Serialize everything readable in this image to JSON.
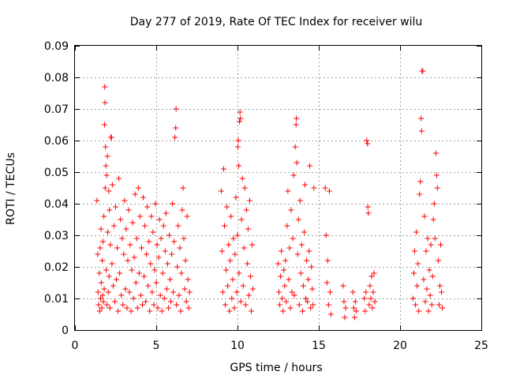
{
  "chart_data": {
    "type": "scatter",
    "title": "Day 277 of 2019, Rate Of TEC Index for receiver wilu",
    "xlabel": "GPS time / hours",
    "ylabel": "ROTI / TECUs",
    "xlim": [
      0,
      25
    ],
    "ylim": [
      0,
      0.09
    ],
    "xticks": [
      0,
      5,
      10,
      15,
      20,
      25
    ],
    "xtick_labels": [
      "0",
      "5",
      "10",
      "15",
      "20",
      "25"
    ],
    "yticks": [
      0,
      0.01,
      0.02,
      0.03,
      0.04,
      0.05,
      0.06,
      0.07,
      0.08,
      0.09
    ],
    "ytick_labels": [
      "0",
      "0.01",
      "0.02",
      "0.03",
      "0.04",
      "0.05",
      "0.06",
      "0.07",
      "0.08",
      "0.09"
    ],
    "grid": true,
    "marker": "plus",
    "color": "#ff0000",
    "series": [
      {
        "name": "ROTI",
        "points": [
          [
            1.35,
            0.041
          ],
          [
            1.4,
            0.024
          ],
          [
            1.42,
            0.012
          ],
          [
            1.45,
            0.008
          ],
          [
            1.5,
            0.018
          ],
          [
            1.52,
            0.006
          ],
          [
            1.55,
            0.026
          ],
          [
            1.58,
            0.01
          ],
          [
            1.6,
            0.032
          ],
          [
            1.62,
            0.015
          ],
          [
            1.65,
            0.007
          ],
          [
            1.68,
            0.022
          ],
          [
            1.7,
            0.011
          ],
          [
            1.72,
            0.028
          ],
          [
            1.75,
            0.009
          ],
          [
            1.78,
            0.036
          ],
          [
            1.8,
            0.013
          ],
          [
            1.82,
            0.065
          ],
          [
            1.83,
            0.077
          ],
          [
            1.85,
            0.072
          ],
          [
            1.86,
            0.045
          ],
          [
            1.88,
            0.058
          ],
          [
            1.9,
            0.052
          ],
          [
            1.92,
            0.019
          ],
          [
            1.95,
            0.049
          ],
          [
            1.97,
            0.008
          ],
          [
            2.0,
            0.055
          ],
          [
            2.02,
            0.031
          ],
          [
            2.05,
            0.012
          ],
          [
            2.08,
            0.044
          ],
          [
            2.1,
            0.017
          ],
          [
            2.12,
            0.038
          ],
          [
            2.15,
            0.007
          ],
          [
            2.18,
            0.027
          ],
          [
            2.2,
            0.061
          ],
          [
            2.25,
            0.061
          ],
          [
            2.28,
            0.021
          ],
          [
            2.3,
            0.046
          ],
          [
            2.35,
            0.014
          ],
          [
            2.4,
            0.033
          ],
          [
            2.45,
            0.009
          ],
          [
            2.5,
            0.039
          ],
          [
            2.55,
            0.016
          ],
          [
            2.6,
            0.026
          ],
          [
            2.65,
            0.006
          ],
          [
            2.7,
            0.048
          ],
          [
            2.75,
            0.018
          ],
          [
            2.8,
            0.035
          ],
          [
            2.85,
            0.011
          ],
          [
            2.9,
            0.029
          ],
          [
            2.95,
            0.008
          ],
          [
            3.0,
            0.024
          ],
          [
            3.05,
            0.041
          ],
          [
            3.1,
            0.013
          ],
          [
            3.15,
            0.032
          ],
          [
            3.2,
            0.007
          ],
          [
            3.25,
            0.022
          ],
          [
            3.3,
            0.038
          ],
          [
            3.35,
            0.012
          ],
          [
            3.4,
            0.027
          ],
          [
            3.45,
            0.006
          ],
          [
            3.5,
            0.019
          ],
          [
            3.55,
            0.034
          ],
          [
            3.6,
            0.01
          ],
          [
            3.65,
            0.023
          ],
          [
            3.7,
            0.043
          ],
          [
            3.75,
            0.015
          ],
          [
            3.8,
            0.029
          ],
          [
            3.85,
            0.007
          ],
          [
            3.9,
            0.045
          ],
          [
            3.95,
            0.018
          ],
          [
            4.0,
            0.036
          ],
          [
            4.05,
            0.011
          ],
          [
            4.1,
            0.026
          ],
          [
            4.15,
            0.008
          ],
          [
            4.2,
            0.042
          ],
          [
            4.25,
            0.017
          ],
          [
            4.3,
            0.033
          ],
          [
            4.35,
            0.009
          ],
          [
            4.4,
            0.024
          ],
          [
            4.45,
            0.039
          ],
          [
            4.5,
            0.014
          ],
          [
            4.55,
            0.028
          ],
          [
            4.6,
            0.006
          ],
          [
            4.65,
            0.021
          ],
          [
            4.7,
            0.036
          ],
          [
            4.75,
            0.012
          ],
          [
            4.8,
            0.031
          ],
          [
            4.85,
            0.008
          ],
          [
            4.9,
            0.019
          ],
          [
            4.95,
            0.04
          ],
          [
            5.0,
            0.015
          ],
          [
            5.05,
            0.027
          ],
          [
            5.1,
            0.007
          ],
          [
            5.15,
            0.023
          ],
          [
            5.2,
            0.035
          ],
          [
            5.25,
            0.011
          ],
          [
            5.3,
            0.029
          ],
          [
            5.35,
            0.006
          ],
          [
            5.4,
            0.018
          ],
          [
            5.45,
            0.033
          ],
          [
            5.5,
            0.01
          ],
          [
            5.55,
            0.025
          ],
          [
            5.6,
            0.037
          ],
          [
            5.65,
            0.013
          ],
          [
            5.7,
            0.021
          ],
          [
            5.75,
            0.007
          ],
          [
            5.8,
            0.03
          ],
          [
            5.85,
            0.016
          ],
          [
            5.9,
            0.009
          ],
          [
            5.95,
            0.024
          ],
          [
            6.0,
            0.04
          ],
          [
            6.05,
            0.012
          ],
          [
            6.1,
            0.028
          ],
          [
            6.15,
            0.061
          ],
          [
            6.2,
            0.064
          ],
          [
            6.22,
            0.07
          ],
          [
            6.25,
            0.008
          ],
          [
            6.3,
            0.02
          ],
          [
            6.35,
            0.033
          ],
          [
            6.4,
            0.011
          ],
          [
            6.45,
            0.026
          ],
          [
            6.5,
            0.006
          ],
          [
            6.55,
            0.018
          ],
          [
            6.6,
            0.038
          ],
          [
            6.65,
            0.045
          ],
          [
            6.7,
            0.029
          ],
          [
            6.75,
            0.013
          ],
          [
            6.8,
            0.022
          ],
          [
            6.85,
            0.009
          ],
          [
            6.9,
            0.036
          ],
          [
            6.95,
            0.016
          ],
          [
            7.0,
            0.007
          ],
          [
            7.05,
            0.012
          ],
          [
            9.0,
            0.044
          ],
          [
            9.05,
            0.025
          ],
          [
            9.1,
            0.012
          ],
          [
            9.15,
            0.051
          ],
          [
            9.2,
            0.033
          ],
          [
            9.25,
            0.008
          ],
          [
            9.3,
            0.019
          ],
          [
            9.35,
            0.039
          ],
          [
            9.4,
            0.014
          ],
          [
            9.45,
            0.027
          ],
          [
            9.5,
            0.006
          ],
          [
            9.55,
            0.022
          ],
          [
            9.6,
            0.036
          ],
          [
            9.65,
            0.01
          ],
          [
            9.7,
            0.016
          ],
          [
            9.75,
            0.029
          ],
          [
            9.8,
            0.007
          ],
          [
            9.85,
            0.024
          ],
          [
            9.9,
            0.042
          ],
          [
            9.95,
            0.012
          ],
          [
            10.0,
            0.03
          ],
          [
            10.02,
            0.058
          ],
          [
            10.05,
            0.06
          ],
          [
            10.08,
            0.052
          ],
          [
            10.1,
            0.018
          ],
          [
            10.12,
            0.066
          ],
          [
            10.15,
            0.069
          ],
          [
            10.18,
            0.067
          ],
          [
            10.2,
            0.009
          ],
          [
            10.25,
            0.035
          ],
          [
            10.3,
            0.048
          ],
          [
            10.35,
            0.014
          ],
          [
            10.4,
            0.026
          ],
          [
            10.45,
            0.045
          ],
          [
            10.5,
            0.008
          ],
          [
            10.55,
            0.038
          ],
          [
            10.6,
            0.021
          ],
          [
            10.65,
            0.032
          ],
          [
            10.7,
            0.011
          ],
          [
            10.75,
            0.041
          ],
          [
            10.8,
            0.017
          ],
          [
            10.85,
            0.006
          ],
          [
            10.9,
            0.027
          ],
          [
            10.95,
            0.013
          ],
          [
            12.5,
            0.021
          ],
          [
            12.55,
            0.012
          ],
          [
            12.6,
            0.008
          ],
          [
            12.65,
            0.017
          ],
          [
            12.7,
            0.025
          ],
          [
            12.75,
            0.01
          ],
          [
            12.8,
            0.006
          ],
          [
            12.85,
            0.019
          ],
          [
            12.9,
            0.014
          ],
          [
            12.95,
            0.022
          ],
          [
            13.0,
            0.009
          ],
          [
            13.05,
            0.033
          ],
          [
            13.1,
            0.044
          ],
          [
            13.15,
            0.016
          ],
          [
            13.2,
            0.026
          ],
          [
            13.25,
            0.007
          ],
          [
            13.3,
            0.038
          ],
          [
            13.35,
            0.012
          ],
          [
            13.4,
            0.029
          ],
          [
            13.45,
            0.049
          ],
          [
            13.5,
            0.011
          ],
          [
            13.55,
            0.058
          ],
          [
            13.6,
            0.065
          ],
          [
            13.62,
            0.067
          ],
          [
            13.65,
            0.053
          ],
          [
            13.7,
            0.024
          ],
          [
            13.75,
            0.035
          ],
          [
            13.8,
            0.008
          ],
          [
            13.85,
            0.041
          ],
          [
            13.9,
            0.018
          ],
          [
            13.95,
            0.027
          ],
          [
            14.0,
            0.006
          ],
          [
            14.05,
            0.014
          ],
          [
            14.1,
            0.031
          ],
          [
            14.15,
            0.046
          ],
          [
            14.2,
            0.01
          ],
          [
            14.25,
            0.022
          ],
          [
            14.3,
            0.009
          ],
          [
            14.35,
            0.016
          ],
          [
            14.4,
            0.025
          ],
          [
            14.45,
            0.052
          ],
          [
            14.5,
            0.007
          ],
          [
            14.55,
            0.02
          ],
          [
            14.6,
            0.013
          ],
          [
            14.65,
            0.008
          ],
          [
            14.7,
            0.045
          ],
          [
            15.4,
            0.045
          ],
          [
            15.45,
            0.03
          ],
          [
            15.5,
            0.015
          ],
          [
            15.55,
            0.022
          ],
          [
            15.6,
            0.008
          ],
          [
            15.65,
            0.044
          ],
          [
            15.7,
            0.012
          ],
          [
            15.75,
            0.005
          ],
          [
            16.5,
            0.014
          ],
          [
            16.55,
            0.009
          ],
          [
            16.6,
            0.004
          ],
          [
            16.65,
            0.007
          ],
          [
            17.1,
            0.012
          ],
          [
            17.15,
            0.007
          ],
          [
            17.2,
            0.004
          ],
          [
            17.25,
            0.009
          ],
          [
            17.3,
            0.006
          ],
          [
            17.8,
            0.01
          ],
          [
            17.85,
            0.006
          ],
          [
            17.9,
            0.012
          ],
          [
            17.95,
            0.06
          ],
          [
            18.0,
            0.059
          ],
          [
            18.02,
            0.039
          ],
          [
            18.05,
            0.037
          ],
          [
            18.1,
            0.008
          ],
          [
            18.15,
            0.014
          ],
          [
            18.2,
            0.01
          ],
          [
            18.25,
            0.017
          ],
          [
            18.3,
            0.007
          ],
          [
            18.35,
            0.012
          ],
          [
            18.4,
            0.018
          ],
          [
            18.45,
            0.009
          ],
          [
            20.8,
            0.01
          ],
          [
            20.85,
            0.018
          ],
          [
            20.9,
            0.025
          ],
          [
            20.95,
            0.008
          ],
          [
            21.0,
            0.031
          ],
          [
            21.05,
            0.014
          ],
          [
            21.1,
            0.021
          ],
          [
            21.15,
            0.006
          ],
          [
            21.2,
            0.043
          ],
          [
            21.25,
            0.047
          ],
          [
            21.3,
            0.067
          ],
          [
            21.33,
            0.063
          ],
          [
            21.35,
            0.082
          ],
          [
            21.4,
            0.082
          ],
          [
            21.45,
            0.016
          ],
          [
            21.5,
            0.036
          ],
          [
            21.55,
            0.009
          ],
          [
            21.6,
            0.025
          ],
          [
            21.65,
            0.013
          ],
          [
            21.7,
            0.029
          ],
          [
            21.75,
            0.006
          ],
          [
            21.8,
            0.019
          ],
          [
            21.85,
            0.011
          ],
          [
            21.9,
            0.027
          ],
          [
            21.95,
            0.008
          ],
          [
            22.0,
            0.017
          ],
          [
            22.05,
            0.035
          ],
          [
            22.1,
            0.04
          ],
          [
            22.15,
            0.029
          ],
          [
            22.2,
            0.056
          ],
          [
            22.25,
            0.049
          ],
          [
            22.3,
            0.045
          ],
          [
            22.35,
            0.022
          ],
          [
            22.4,
            0.008
          ],
          [
            22.45,
            0.014
          ],
          [
            22.5,
            0.027
          ],
          [
            22.55,
            0.012
          ],
          [
            22.6,
            0.007
          ]
        ]
      }
    ]
  }
}
